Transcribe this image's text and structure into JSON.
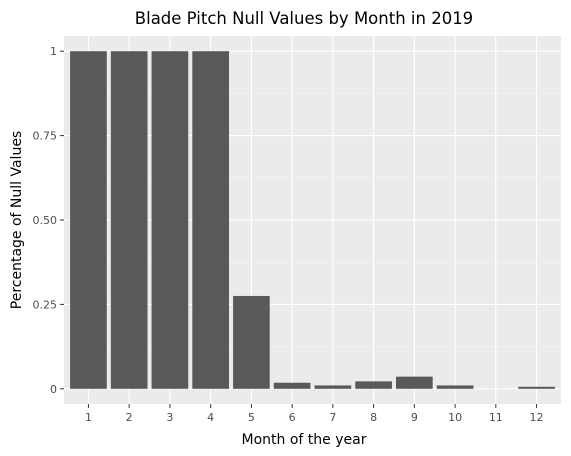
{
  "chart_data": {
    "type": "bar",
    "title": "Blade Pitch Null Values by Month in 2019",
    "xlabel": "Month of the year",
    "ylabel": "Percentage of Null Values",
    "categories": [
      "1",
      "2",
      "3",
      "4",
      "5",
      "6",
      "7",
      "8",
      "9",
      "10",
      "11",
      "12"
    ],
    "values": [
      1.0,
      1.0,
      1.0,
      1.0,
      0.275,
      0.018,
      0.01,
      0.022,
      0.036,
      0.01,
      0.0,
      0.006
    ],
    "ylim": [
      -0.045,
      1.045
    ],
    "yticks": [
      0,
      0.25,
      0.5,
      0.75,
      1
    ],
    "ytick_labels": [
      "0",
      "0.25",
      "0.50",
      "0.75",
      "1"
    ],
    "grid": true,
    "colors": {
      "bar": "#595959",
      "panel": "#ebebeb",
      "grid_major": "#ffffff",
      "grid_minor": "#f5f5f5",
      "tick": "#333333"
    }
  }
}
